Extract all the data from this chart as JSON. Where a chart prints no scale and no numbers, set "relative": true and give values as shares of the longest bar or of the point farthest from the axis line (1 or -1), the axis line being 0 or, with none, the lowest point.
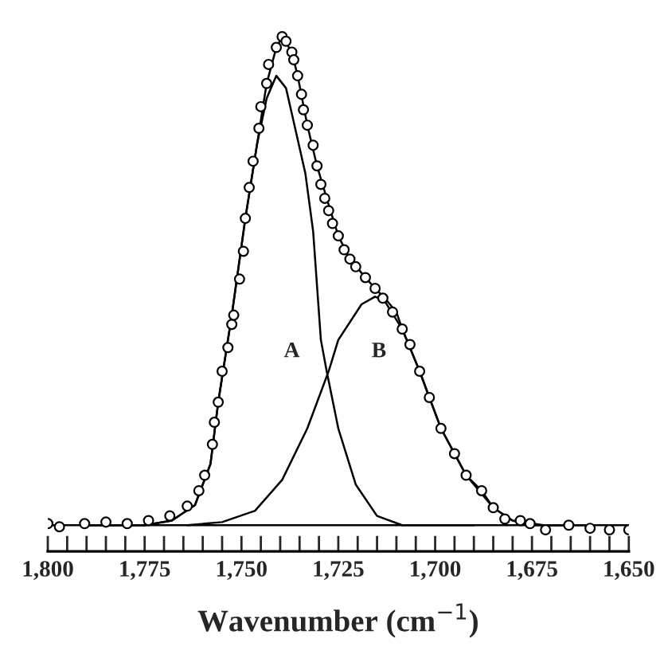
{
  "chart_data": {
    "type": "line",
    "relative": true,
    "xlabel": "Wavenumber (cm$^{−1}$)",
    "xlim": [
      1800,
      1650
    ],
    "xticks": [
      {
        "value": 1800,
        "label": "1,800"
      },
      {
        "value": 1795,
        "label": null
      },
      {
        "value": 1790,
        "label": null
      },
      {
        "value": 1785,
        "label": null
      },
      {
        "value": 1780,
        "label": null
      },
      {
        "value": 1775,
        "label": "1,775"
      },
      {
        "value": 1770,
        "label": null
      },
      {
        "value": 1765,
        "label": null
      },
      {
        "value": 1760,
        "label": null
      },
      {
        "value": 1755,
        "label": null
      },
      {
        "value": 1750,
        "label": "1,750"
      },
      {
        "value": 1745,
        "label": null
      },
      {
        "value": 1740,
        "label": null
      },
      {
        "value": 1735,
        "label": null
      },
      {
        "value": 1730,
        "label": null
      },
      {
        "value": 1725,
        "label": "1,725"
      },
      {
        "value": 1720,
        "label": null
      },
      {
        "value": 1715,
        "label": null
      },
      {
        "value": 1710,
        "label": null
      },
      {
        "value": 1705,
        "label": null
      },
      {
        "value": 1700,
        "label": "1,700"
      },
      {
        "value": 1695,
        "label": null
      },
      {
        "value": 1690,
        "label": null
      },
      {
        "value": 1685,
        "label": null
      },
      {
        "value": 1680,
        "label": null
      },
      {
        "value": 1675,
        "label": "1,675"
      },
      {
        "value": 1670,
        "label": null
      },
      {
        "value": 1665,
        "label": null
      },
      {
        "value": 1660,
        "label": null
      },
      {
        "value": 1655,
        "label": null
      },
      {
        "value": 1650,
        "label": "1,650"
      }
    ],
    "grid": false,
    "legend": false,
    "series": [
      {
        "type": "scatter",
        "marker": "circle",
        "color": "#000000",
        "x": [
          1800,
          1797,
          1790.5,
          1785,
          1779.5,
          1774,
          1768.5,
          1764,
          1761,
          1759.5,
          1757.5,
          1757,
          1756,
          1755,
          1753.5,
          1752.5,
          1752,
          1750.5,
          1749.5,
          1749,
          1748,
          1747,
          1745.5,
          1745,
          1743.5,
          1743,
          1741,
          1739.5,
          1738.5,
          1737,
          1736.5,
          1735.5,
          1734.5,
          1734,
          1733,
          1731.5,
          1730.5,
          1729.5,
          1728.5,
          1727.5,
          1726.5,
          1725,
          1723.5,
          1722,
          1720.5,
          1718,
          1715.5,
          1713.5,
          1711,
          1708.5,
          1706.5,
          1704,
          1701.5,
          1698.5,
          1695,
          1692,
          1688,
          1685,
          1682,
          1678,
          1675.5,
          1671.5,
          1665.5,
          1660,
          1655,
          1650
        ],
        "values": [
          0.054,
          0.048,
          0.054,
          0.057,
          0.054,
          0.06,
          0.069,
          0.088,
          0.118,
          0.148,
          0.208,
          0.251,
          0.29,
          0.35,
          0.396,
          0.441,
          0.459,
          0.529,
          0.583,
          0.647,
          0.707,
          0.758,
          0.822,
          0.864,
          0.909,
          0.946,
          0.979,
          1.0,
          0.991,
          0.97,
          0.955,
          0.924,
          0.888,
          0.858,
          0.828,
          0.789,
          0.749,
          0.713,
          0.686,
          0.662,
          0.637,
          0.613,
          0.586,
          0.568,
          0.553,
          0.532,
          0.511,
          0.492,
          0.465,
          0.432,
          0.402,
          0.35,
          0.299,
          0.239,
          0.19,
          0.148,
          0.118,
          0.085,
          0.063,
          0.06,
          0.054,
          0.042,
          0.051,
          0.045,
          0.042,
          0.042
        ]
      },
      {
        "color": "#000000",
        "x": [
          1790,
          1775,
          1768,
          1762,
          1758,
          1756,
          1752.5,
          1749,
          1746,
          1743.5,
          1741,
          1739.5,
          1737,
          1735.5,
          1733,
          1730.5,
          1728,
          1725,
          1722,
          1718,
          1715.5,
          1713,
          1710,
          1708.5,
          1704,
          1701.5,
          1698.5,
          1695,
          1692,
          1688,
          1685,
          1680,
          1675,
          1665
        ],
        "values": [
          0.051,
          0.051,
          0.06,
          0.09,
          0.17,
          0.29,
          0.459,
          0.647,
          0.79,
          0.909,
          0.979,
          1.0,
          0.97,
          0.924,
          0.828,
          0.749,
          0.686,
          0.613,
          0.568,
          0.532,
          0.511,
          0.492,
          0.465,
          0.432,
          0.35,
          0.299,
          0.239,
          0.19,
          0.148,
          0.118,
          0.085,
          0.06,
          0.051,
          0.051
        ]
      },
      {
        "color": "#000000",
        "x": [
          1790,
          1775,
          1768,
          1762,
          1758,
          1756,
          1752.5,
          1749,
          1746,
          1743.5,
          1741,
          1738.5,
          1736.5,
          1733.5,
          1731.5,
          1729.5,
          1728,
          1725,
          1720.5,
          1715,
          1708.5,
          1690
        ],
        "values": [
          0.051,
          0.051,
          0.06,
          0.09,
          0.17,
          0.29,
          0.459,
          0.647,
          0.79,
          0.88,
          0.924,
          0.9,
          0.834,
          0.734,
          0.622,
          0.411,
          0.35,
          0.239,
          0.13,
          0.069,
          0.051,
          0.051
        ]
      },
      {
        "color": "#000000",
        "x": [
          1764,
          1755,
          1746.5,
          1739.5,
          1733,
          1727.5,
          1725,
          1719,
          1715.5,
          1713,
          1708.5,
          1704,
          1698.5,
          1692,
          1685,
          1680,
          1672,
          1660
        ],
        "values": [
          0.051,
          0.057,
          0.079,
          0.139,
          0.239,
          0.35,
          0.411,
          0.48,
          0.495,
          0.486,
          0.432,
          0.35,
          0.239,
          0.148,
          0.085,
          0.06,
          0.051,
          0.051
        ]
      }
    ],
    "ref_lines": [
      {
        "axis": "y",
        "value": 0.051,
        "color": "#000000"
      }
    ],
    "annotations": [
      "A",
      "B"
    ]
  }
}
